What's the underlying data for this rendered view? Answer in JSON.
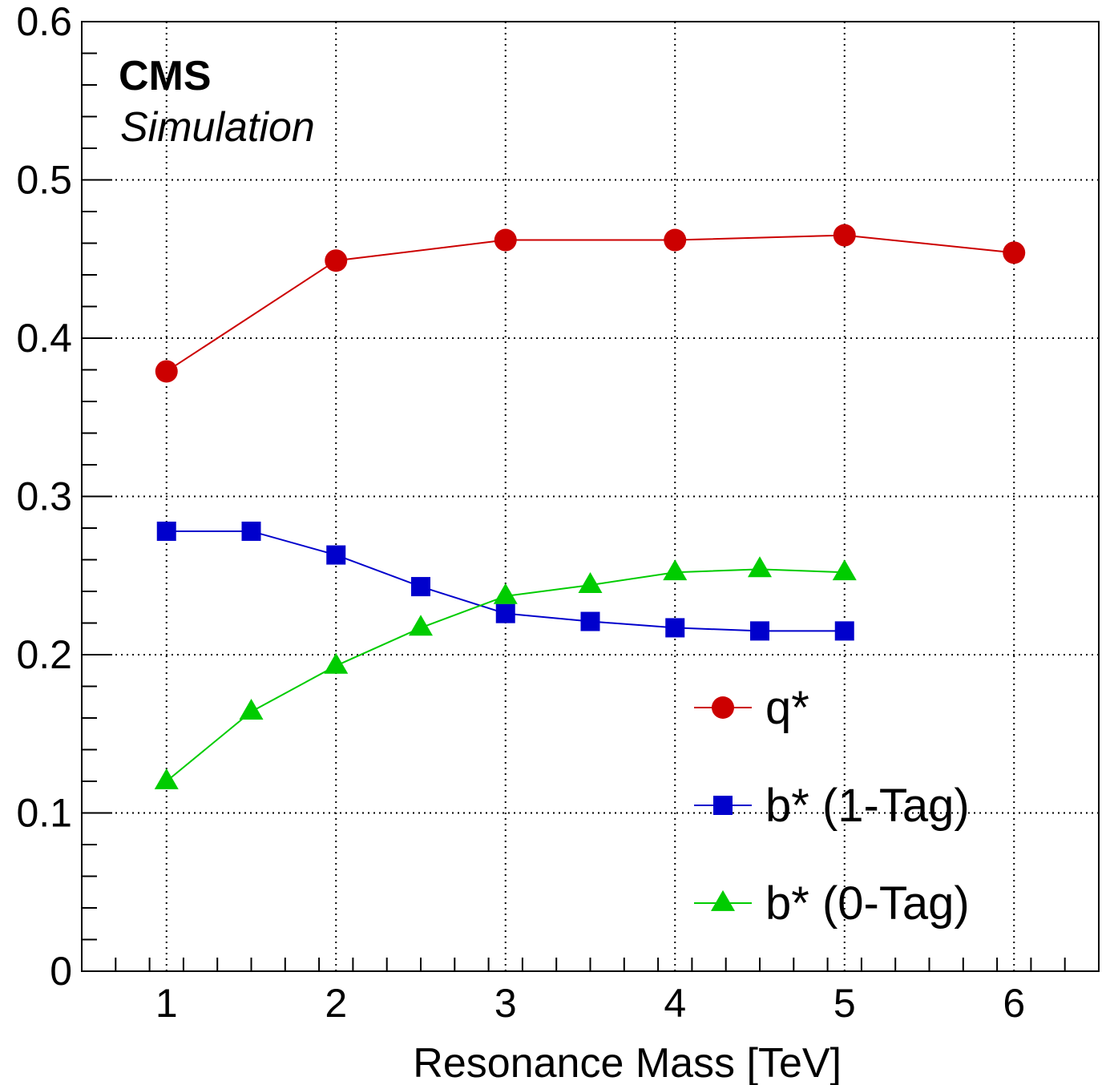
{
  "header": {
    "experiment": "CMS",
    "subtitle": "Simulation"
  },
  "chart_data": {
    "type": "line",
    "xlabel": "Resonance Mass [TeV]",
    "ylabel": "",
    "xlim": [
      0.5,
      6.5
    ],
    "ylim": [
      0,
      0.6
    ],
    "x_ticks": [
      1,
      2,
      3,
      4,
      5,
      6
    ],
    "x_tick_labels": [
      "1",
      "2",
      "3",
      "4",
      "5",
      "6"
    ],
    "y_ticks": [
      0,
      0.1,
      0.2,
      0.3,
      0.4,
      0.5,
      0.6
    ],
    "y_tick_labels": [
      "0",
      "0.1",
      "0.2",
      "0.3",
      "0.4",
      "0.5",
      "0.6"
    ],
    "grid": true,
    "legend_position": "bottom-right",
    "series": [
      {
        "name": "q*",
        "color": "#cc0000",
        "marker": "circle",
        "x": [
          1,
          2,
          3,
          4,
          5,
          6
        ],
        "y": [
          0.379,
          0.449,
          0.462,
          0.462,
          0.465,
          0.454
        ]
      },
      {
        "name": "b* (1-Tag)",
        "color": "#0000cc",
        "marker": "square",
        "x": [
          1,
          1.5,
          2,
          2.5,
          3,
          3.5,
          4,
          4.5,
          5
        ],
        "y": [
          0.278,
          0.278,
          0.263,
          0.243,
          0.226,
          0.221,
          0.217,
          0.215,
          0.215
        ]
      },
      {
        "name": "b* (0-Tag)",
        "color": "#00cc00",
        "marker": "triangle",
        "x": [
          1,
          1.5,
          2,
          2.5,
          3,
          3.5,
          4,
          4.5,
          5
        ],
        "y": [
          0.12,
          0.164,
          0.193,
          0.217,
          0.237,
          0.244,
          0.252,
          0.254,
          0.252
        ]
      }
    ]
  }
}
